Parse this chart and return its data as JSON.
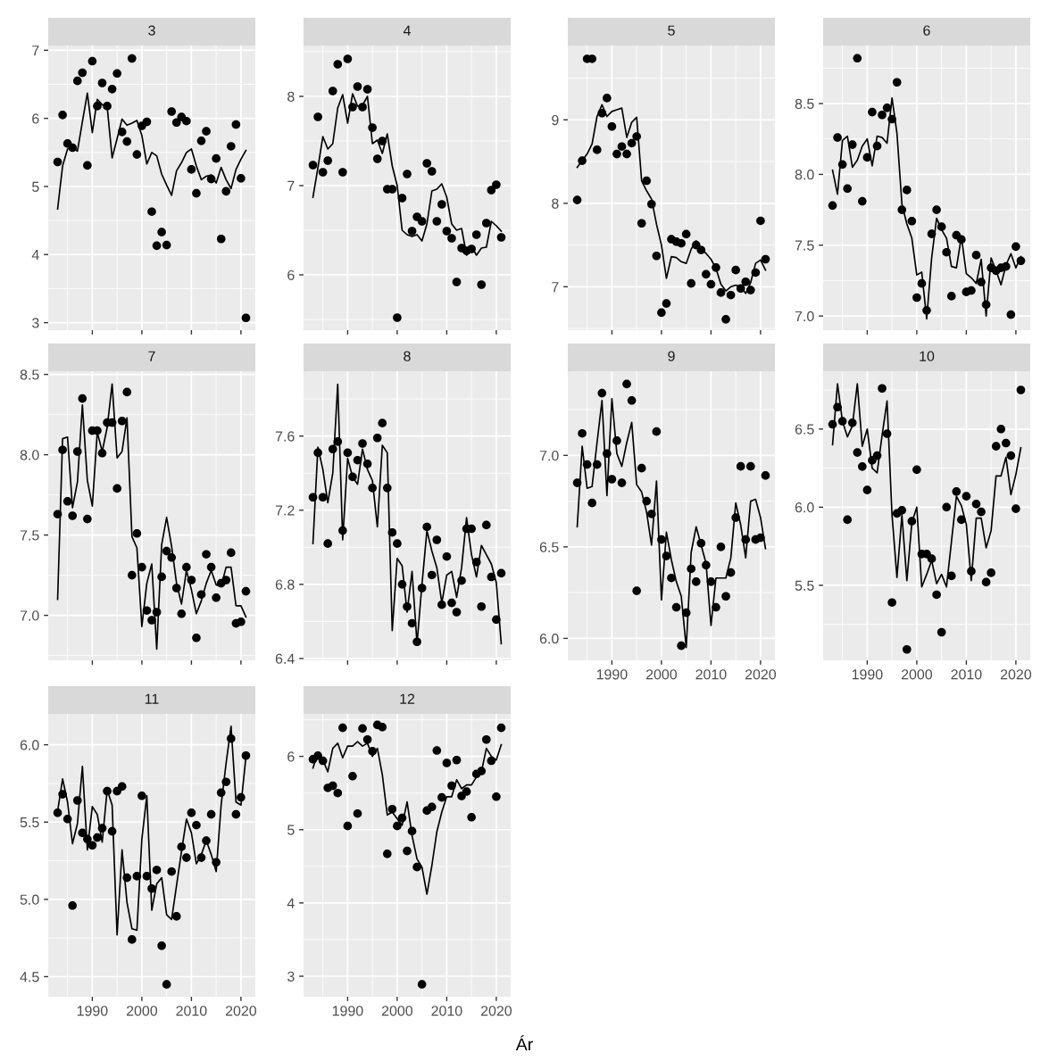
{
  "chart_data": [
    {
      "type": "scatter",
      "title": "3",
      "x": [
        1983,
        1984,
        1985,
        1986,
        1987,
        1988,
        1989,
        1990,
        1991,
        1992,
        1993,
        1994,
        1995,
        1996,
        1997,
        1998,
        1999,
        2000,
        2001,
        2002,
        2003,
        2004,
        2005,
        2006,
        2007,
        2008,
        2009,
        2010,
        2011,
        2012,
        2013,
        2014,
        2015,
        2016,
        2017,
        2018,
        2019,
        2020,
        2021
      ],
      "xlim": [
        1981.1,
        2022.9
      ],
      "xticks": [
        1990,
        2000,
        2010,
        2020
      ],
      "ylim": [
        2.89,
        7.07
      ],
      "yticks": [
        3,
        4,
        5,
        6,
        7
      ],
      "grid": true,
      "tick_labels": "y",
      "series": [
        {
          "color": "#000000",
          "marker": "circle",
          "values": [
            5.36,
            6.05,
            5.63,
            5.57,
            6.55,
            6.67,
            5.31,
            6.84,
            6.18,
            6.52,
            6.18,
            6.43,
            6.66,
            5.8,
            5.66,
            6.88,
            5.47,
            5.89,
            5.95,
            4.63,
            4.13,
            4.33,
            4.14,
            6.1,
            5.94,
            6.02,
            5.96,
            5.25,
            4.9,
            5.67,
            5.81,
            5.11,
            5.41,
            4.23,
            4.93,
            5.59,
            5.91,
            5.12,
            3.07
          ]
        },
        {
          "type": "line",
          "color": "#000000",
          "values": [
            4.67,
            5.3,
            5.55,
            5.57,
            5.52,
            5.95,
            6.37,
            5.79,
            6.28,
            6.2,
            6.17,
            5.42,
            5.7,
            5.99,
            5.9,
            5.93,
            5.97,
            5.75,
            5.33,
            5.5,
            5.45,
            5.18,
            5.02,
            4.87,
            5.23,
            5.35,
            5.5,
            5.55,
            5.3,
            5.1,
            5.15,
            5.17,
            5.05,
            5.28,
            5.1,
            4.97,
            5.25,
            5.4,
            5.53
          ]
        }
      ]
    },
    {
      "type": "scatter",
      "title": "4",
      "x": [
        1983,
        1984,
        1985,
        1986,
        1987,
        1988,
        1989,
        1990,
        1991,
        1992,
        1993,
        1994,
        1995,
        1996,
        1997,
        1998,
        1999,
        2000,
        2001,
        2002,
        2003,
        2004,
        2005,
        2006,
        2007,
        2008,
        2009,
        2010,
        2011,
        2012,
        2013,
        2014,
        2015,
        2016,
        2017,
        2018,
        2019,
        2020,
        2021
      ],
      "xlim": [
        1981.1,
        2022.9
      ],
      "xticks": [
        1990,
        2000,
        2010,
        2020
      ],
      "ylim": [
        5.38,
        8.57
      ],
      "yticks": [
        6,
        7,
        8
      ],
      "grid": true,
      "tick_labels": "y",
      "series": [
        {
          "color": "#000000",
          "marker": "circle",
          "values": [
            7.23,
            7.77,
            7.15,
            7.28,
            8.06,
            8.36,
            7.15,
            8.42,
            7.88,
            8.11,
            7.88,
            8.08,
            7.65,
            7.3,
            7.5,
            6.96,
            6.96,
            5.52,
            6.86,
            7.13,
            6.49,
            6.65,
            6.6,
            7.25,
            7.16,
            6.6,
            6.79,
            6.49,
            6.41,
            5.92,
            6.3,
            6.27,
            6.29,
            6.45,
            5.89,
            6.58,
            6.95,
            7.01,
            6.42
          ]
        },
        {
          "type": "line",
          "color": "#000000",
          "values": [
            6.87,
            7.2,
            7.55,
            7.41,
            7.47,
            7.87,
            8.02,
            7.7,
            8.03,
            7.89,
            7.9,
            8.0,
            7.47,
            7.51,
            7.36,
            7.58,
            7.22,
            7.0,
            6.5,
            6.45,
            6.43,
            6.45,
            6.38,
            6.57,
            6.94,
            6.96,
            7.02,
            6.87,
            6.57,
            6.5,
            6.52,
            6.22,
            6.32,
            6.22,
            6.3,
            6.31,
            6.6,
            6.55,
            6.49
          ]
        }
      ]
    },
    {
      "type": "scatter",
      "title": "5",
      "x": [
        1983,
        1984,
        1985,
        1986,
        1987,
        1988,
        1989,
        1990,
        1991,
        1992,
        1993,
        1994,
        1995,
        1996,
        1997,
        1998,
        1999,
        2000,
        2001,
        2002,
        2003,
        2004,
        2005,
        2006,
        2007,
        2008,
        2009,
        2010,
        2011,
        2012,
        2013,
        2014,
        2015,
        2016,
        2017,
        2018,
        2019,
        2020,
        2021
      ],
      "xlim": [
        1981.1,
        2022.9
      ],
      "xticks": [
        1990,
        2000,
        2010,
        2020
      ],
      "ylim": [
        6.48,
        9.89
      ],
      "yticks": [
        7,
        8,
        9
      ],
      "grid": true,
      "tick_labels": "y",
      "series": [
        {
          "color": "#000000",
          "marker": "circle",
          "values": [
            8.04,
            8.51,
            9.73,
            9.73,
            8.64,
            9.08,
            9.26,
            8.92,
            8.59,
            8.68,
            8.59,
            8.72,
            8.8,
            7.76,
            8.27,
            7.99,
            7.37,
            6.69,
            6.8,
            7.57,
            7.54,
            7.52,
            7.63,
            7.04,
            7.5,
            7.44,
            7.15,
            7.03,
            7.23,
            6.93,
            6.61,
            6.9,
            7.2,
            6.98,
            7.06,
            6.96,
            7.17,
            7.79,
            7.33
          ]
        },
        {
          "type": "line",
          "color": "#000000",
          "values": [
            8.43,
            8.51,
            8.59,
            8.71,
            9.04,
            9.18,
            9.04,
            9.1,
            9.12,
            9.14,
            8.79,
            8.97,
            9.03,
            8.27,
            8.15,
            8.05,
            7.75,
            7.5,
            7.1,
            7.36,
            7.35,
            7.3,
            7.28,
            7.45,
            7.55,
            7.45,
            7.4,
            7.33,
            7.22,
            7.03,
            6.95,
            7.0,
            7.02,
            7.0,
            6.92,
            7.05,
            7.28,
            7.32,
            7.2
          ]
        }
      ]
    },
    {
      "type": "scatter",
      "title": "6",
      "x": [
        1983,
        1984,
        1985,
        1986,
        1987,
        1988,
        1989,
        1990,
        1991,
        1992,
        1993,
        1994,
        1995,
        1996,
        1997,
        1998,
        1999,
        2000,
        2001,
        2002,
        2003,
        2004,
        2005,
        2006,
        2007,
        2008,
        2009,
        2010,
        2011,
        2012,
        2013,
        2014,
        2015,
        2016,
        2017,
        2018,
        2019,
        2020,
        2021
      ],
      "xlim": [
        1981.1,
        2022.9
      ],
      "xticks": [
        1990,
        2000,
        2010,
        2020
      ],
      "ylim": [
        6.9,
        8.91
      ],
      "yticks": [
        {
          "value": 7,
          "label": "7.0"
        },
        7.5,
        {
          "value": 8,
          "label": "8.0"
        },
        8.5
      ],
      "grid": true,
      "tick_labels": "y",
      "series": [
        {
          "color": "#000000",
          "marker": "circle",
          "values": [
            7.78,
            8.26,
            8.07,
            7.9,
            8.21,
            8.82,
            7.81,
            8.12,
            8.44,
            8.2,
            8.42,
            8.47,
            8.39,
            8.65,
            7.75,
            7.89,
            7.67,
            7.13,
            7.23,
            7.04,
            7.58,
            7.75,
            7.63,
            7.45,
            7.14,
            7.57,
            7.54,
            7.17,
            7.18,
            7.43,
            7.24,
            7.08,
            7.34,
            7.32,
            7.34,
            7.35,
            7.01,
            7.49,
            7.39
          ]
        },
        {
          "type": "line",
          "color": "#000000",
          "values": [
            8.03,
            7.86,
            8.24,
            8.27,
            8.05,
            8.1,
            8.2,
            8.25,
            8.06,
            8.27,
            8.26,
            8.22,
            8.54,
            8.29,
            7.79,
            7.65,
            7.55,
            7.29,
            7.31,
            6.98,
            7.41,
            7.69,
            7.61,
            7.55,
            7.35,
            7.34,
            7.56,
            7.3,
            7.27,
            7.23,
            7.4,
            7.0,
            7.41,
            7.32,
            7.22,
            7.36,
            7.44,
            7.34,
            7.42
          ]
        }
      ]
    },
    {
      "type": "scatter",
      "title": "7",
      "x": [
        1983,
        1984,
        1985,
        1986,
        1987,
        1988,
        1989,
        1990,
        1991,
        1992,
        1993,
        1994,
        1995,
        1996,
        1997,
        1998,
        1999,
        2000,
        2001,
        2002,
        2003,
        2004,
        2005,
        2006,
        2007,
        2008,
        2009,
        2010,
        2011,
        2012,
        2013,
        2014,
        2015,
        2016,
        2017,
        2018,
        2019,
        2020,
        2021
      ],
      "xlim": [
        1981.1,
        2022.9
      ],
      "xticks": [
        1990,
        2000,
        2010,
        2020
      ],
      "ylim": [
        6.72,
        8.52
      ],
      "yticks": [
        {
          "value": 7,
          "label": "7.0"
        },
        7.5,
        {
          "value": 8,
          "label": "8.0"
        },
        8.5
      ],
      "grid": true,
      "tick_labels": "y",
      "series": [
        {
          "color": "#000000",
          "marker": "circle",
          "values": [
            7.63,
            8.03,
            7.71,
            7.62,
            8.02,
            8.35,
            7.6,
            8.15,
            8.15,
            8.01,
            8.2,
            8.2,
            7.79,
            8.21,
            8.39,
            7.25,
            7.51,
            7.3,
            7.03,
            6.97,
            7.02,
            7.24,
            7.4,
            7.36,
            7.17,
            7.01,
            7.3,
            7.22,
            6.86,
            7.13,
            7.38,
            7.3,
            7.11,
            7.2,
            7.22,
            7.39,
            6.95,
            6.96,
            7.15
          ]
        },
        {
          "type": "line",
          "color": "#000000",
          "values": [
            7.1,
            8.1,
            8.11,
            7.67,
            7.83,
            8.31,
            7.84,
            7.68,
            8.14,
            8.02,
            8.17,
            8.44,
            7.98,
            8.02,
            8.23,
            7.49,
            7.42,
            6.93,
            7.2,
            7.32,
            6.79,
            7.44,
            7.61,
            7.43,
            7.2,
            7.07,
            7.28,
            7.16,
            7.01,
            7.09,
            7.2,
            7.28,
            7.19,
            7.18,
            7.3,
            7.3,
            7.06,
            7.06,
            6.99
          ]
        }
      ]
    },
    {
      "type": "scatter",
      "title": "8",
      "x": [
        1983,
        1984,
        1985,
        1986,
        1987,
        1988,
        1989,
        1990,
        1991,
        1992,
        1993,
        1994,
        1995,
        1996,
        1997,
        1998,
        1999,
        2000,
        2001,
        2002,
        2003,
        2004,
        2005,
        2006,
        2007,
        2008,
        2009,
        2010,
        2011,
        2012,
        2013,
        2014,
        2015,
        2016,
        2017,
        2018,
        2019,
        2020,
        2021
      ],
      "xlim": [
        1981.1,
        2022.9
      ],
      "xticks": [
        1990,
        2000,
        2010,
        2020
      ],
      "ylim": [
        6.39,
        7.95
      ],
      "yticks": [
        6.4,
        6.8,
        7.2,
        7.6
      ],
      "grid": true,
      "tick_labels": "y",
      "series": [
        {
          "color": "#000000",
          "marker": "circle",
          "values": [
            7.27,
            7.51,
            7.27,
            7.02,
            7.53,
            7.57,
            7.09,
            7.51,
            7.38,
            7.47,
            7.56,
            7.45,
            7.32,
            7.59,
            7.67,
            7.32,
            7.08,
            7.02,
            6.8,
            6.68,
            6.59,
            6.49,
            6.78,
            7.11,
            6.85,
            7.04,
            6.69,
            6.95,
            6.7,
            6.65,
            6.82,
            7.1,
            7.1,
            6.92,
            6.68,
            7.12,
            6.84,
            6.61,
            6.86
          ]
        },
        {
          "type": "line",
          "color": "#000000",
          "values": [
            7.02,
            7.54,
            7.42,
            7.24,
            7.4,
            7.88,
            7.04,
            7.48,
            7.38,
            7.34,
            7.53,
            7.42,
            7.36,
            7.11,
            7.55,
            7.51,
            6.55,
            6.94,
            6.9,
            6.65,
            6.87,
            6.48,
            6.8,
            7.09,
            6.98,
            6.89,
            6.7,
            6.85,
            6.87,
            6.73,
            6.89,
            7.16,
            6.96,
            6.84,
            7.01,
            6.96,
            6.91,
            6.81,
            6.48
          ]
        }
      ]
    },
    {
      "type": "scatter",
      "title": "9",
      "x": [
        1983,
        1984,
        1985,
        1986,
        1987,
        1988,
        1989,
        1990,
        1991,
        1992,
        1993,
        1994,
        1995,
        1996,
        1997,
        1998,
        1999,
        2000,
        2001,
        2002,
        2003,
        2004,
        2005,
        2006,
        2007,
        2008,
        2009,
        2010,
        2011,
        2012,
        2013,
        2014,
        2015,
        2016,
        2017,
        2018,
        2019,
        2020,
        2021
      ],
      "xlim": [
        1981.1,
        2022.9
      ],
      "xticks": [
        1990,
        2000,
        2010,
        2020
      ],
      "ylim": [
        5.88,
        7.46
      ],
      "yticks": [
        {
          "value": 6,
          "label": "6.0"
        },
        6.5,
        {
          "value": 7,
          "label": "7.0"
        }
      ],
      "grid": true,
      "series": [
        {
          "color": "#000000",
          "marker": "circle",
          "values": [
            6.85,
            7.12,
            6.95,
            6.74,
            6.95,
            7.34,
            7.01,
            6.87,
            7.08,
            6.85,
            7.39,
            7.3,
            6.26,
            6.93,
            6.75,
            6.68,
            7.13,
            6.54,
            6.45,
            6.33,
            6.17,
            5.96,
            6.14,
            6.38,
            6.31,
            6.52,
            6.4,
            6.31,
            6.17,
            6.5,
            6.23,
            6.36,
            6.66,
            6.94,
            6.54,
            6.94,
            6.54,
            6.55,
            6.89
          ]
        },
        {
          "type": "line",
          "color": "#000000",
          "values": [
            6.61,
            7.05,
            6.82,
            6.83,
            7.07,
            7.3,
            6.78,
            7.31,
            7.01,
            6.94,
            7.07,
            7.18,
            6.84,
            6.8,
            6.69,
            6.51,
            6.86,
            6.21,
            6.58,
            6.43,
            6.31,
            6.23,
            5.95,
            6.47,
            6.61,
            6.51,
            6.41,
            6.07,
            6.33,
            6.33,
            6.33,
            6.44,
            6.74,
            6.62,
            6.44,
            6.75,
            6.76,
            6.66,
            6.49
          ]
        }
      ]
    },
    {
      "type": "scatter",
      "title": "10",
      "x": [
        1983,
        1984,
        1985,
        1986,
        1987,
        1988,
        1989,
        1990,
        1991,
        1992,
        1993,
        1994,
        1995,
        1996,
        1997,
        1998,
        1999,
        2000,
        2001,
        2002,
        2003,
        2004,
        2005,
        2006,
        2007,
        2008,
        2009,
        2010,
        2011,
        2012,
        2013,
        2014,
        2015,
        2016,
        2017,
        2018,
        2019,
        2020,
        2021
      ],
      "xlim": [
        1981.1,
        2022.9
      ],
      "xticks": [
        1990,
        2000,
        2010,
        2020
      ],
      "ylim": [
        5.02,
        6.87
      ],
      "yticks": [
        5.5,
        {
          "value": 6,
          "label": "6.0"
        },
        6.5
      ],
      "grid": true,
      "series": [
        {
          "color": "#000000",
          "marker": "circle",
          "values": [
            6.53,
            6.64,
            6.55,
            5.92,
            6.54,
            6.35,
            6.26,
            6.11,
            6.3,
            6.33,
            6.76,
            6.47,
            5.39,
            5.96,
            5.98,
            5.09,
            5.91,
            6.24,
            5.7,
            5.7,
            5.67,
            5.44,
            5.2,
            6.0,
            5.56,
            6.1,
            5.92,
            6.07,
            5.59,
            6.02,
            5.97,
            5.52,
            5.58,
            6.39,
            6.5,
            6.41,
            6.33,
            5.99,
            6.75
          ]
        },
        {
          "type": "line",
          "color": "#000000",
          "values": [
            6.4,
            6.79,
            6.55,
            6.45,
            6.52,
            6.79,
            6.39,
            6.5,
            6.25,
            6.22,
            6.46,
            6.68,
            5.95,
            5.55,
            5.95,
            5.53,
            5.9,
            6.0,
            5.49,
            5.57,
            5.66,
            5.51,
            5.57,
            5.49,
            5.78,
            6.07,
            6.01,
            5.89,
            5.53,
            5.93,
            5.93,
            5.74,
            5.85,
            6.2,
            6.2,
            6.32,
            6.08,
            6.21,
            6.38
          ]
        }
      ]
    },
    {
      "type": "scatter",
      "title": "11",
      "x": [
        1983,
        1984,
        1985,
        1986,
        1987,
        1988,
        1989,
        1990,
        1991,
        1992,
        1993,
        1994,
        1995,
        1996,
        1997,
        1998,
        1999,
        2000,
        2001,
        2002,
        2003,
        2004,
        2005,
        2006,
        2007,
        2008,
        2009,
        2010,
        2011,
        2012,
        2013,
        2014,
        2015,
        2016,
        2017,
        2018,
        2019,
        2020,
        2021
      ],
      "xlim": [
        1981.1,
        2022.9
      ],
      "xticks": [
        1990,
        2000,
        2010,
        2020
      ],
      "ylim": [
        4.37,
        6.2
      ],
      "yticks": [
        4.5,
        {
          "value": 5,
          "label": "5.0"
        },
        5.5,
        {
          "value": 6,
          "label": "6.0"
        }
      ],
      "grid": true,
      "series": [
        {
          "color": "#000000",
          "marker": "circle",
          "values": [
            5.56,
            5.68,
            5.52,
            4.96,
            5.64,
            5.43,
            5.39,
            5.35,
            5.4,
            5.46,
            5.7,
            5.44,
            5.7,
            5.73,
            5.14,
            4.74,
            5.15,
            5.67,
            5.15,
            5.07,
            5.19,
            4.7,
            4.45,
            5.18,
            4.89,
            5.34,
            5.27,
            5.56,
            5.48,
            5.27,
            5.38,
            5.55,
            5.24,
            5.69,
            5.76,
            6.04,
            5.55,
            5.66,
            5.93
          ]
        },
        {
          "type": "line",
          "color": "#000000",
          "values": [
            5.57,
            5.78,
            5.63,
            5.36,
            5.49,
            5.86,
            5.32,
            5.6,
            5.55,
            5.37,
            5.71,
            5.61,
            4.77,
            5.32,
            4.98,
            4.81,
            4.8,
            5.39,
            5.67,
            4.93,
            5.1,
            5.14,
            4.9,
            4.87,
            5.09,
            5.31,
            5.52,
            5.43,
            5.23,
            5.29,
            5.38,
            5.29,
            5.18,
            5.61,
            5.88,
            6.12,
            5.63,
            5.61,
            5.92
          ]
        }
      ]
    },
    {
      "type": "scatter",
      "title": "12",
      "xlabel": "Ár",
      "x": [
        1983,
        1984,
        1985,
        1986,
        1987,
        1988,
        1989,
        1990,
        1991,
        1992,
        1993,
        1994,
        1995,
        1996,
        1997,
        1998,
        1999,
        2000,
        2001,
        2002,
        2003,
        2004,
        2005,
        2006,
        2007,
        2008,
        2009,
        2010,
        2011,
        2012,
        2013,
        2014,
        2015,
        2016,
        2017,
        2018,
        2019,
        2020,
        2021
      ],
      "xlim": [
        1981.1,
        2022.9
      ],
      "xticks": [
        1990,
        2000,
        2010,
        2020
      ],
      "ylim": [
        2.72,
        6.58
      ],
      "yticks": [
        3,
        4,
        5,
        6
      ],
      "grid": true,
      "series": [
        {
          "color": "#000000",
          "marker": "circle",
          "values": [
            5.96,
            6.01,
            5.94,
            5.57,
            5.6,
            5.5,
            6.39,
            5.05,
            5.73,
            5.22,
            6.38,
            6.23,
            6.07,
            6.43,
            6.4,
            4.67,
            5.28,
            5.05,
            5.16,
            4.71,
            4.98,
            4.49,
            2.89,
            5.26,
            5.31,
            6.08,
            5.44,
            5.91,
            5.6,
            5.95,
            5.46,
            5.52,
            5.17,
            5.76,
            5.8,
            6.23,
            5.94,
            5.45,
            6.39
          ]
        },
        {
          "type": "line",
          "color": "#000000",
          "values": [
            5.84,
            6.05,
            5.95,
            5.79,
            6.11,
            6.18,
            5.98,
            6.14,
            6.14,
            6.2,
            6.14,
            6.18,
            6.0,
            6.11,
            5.75,
            5.2,
            5.24,
            5.15,
            5.06,
            5.38,
            4.92,
            4.6,
            4.49,
            4.12,
            4.51,
            4.97,
            5.24,
            5.45,
            5.45,
            5.68,
            5.56,
            5.61,
            5.61,
            5.72,
            5.79,
            6.11,
            6.0,
            5.95,
            6.16
          ]
        }
      ]
    }
  ]
}
